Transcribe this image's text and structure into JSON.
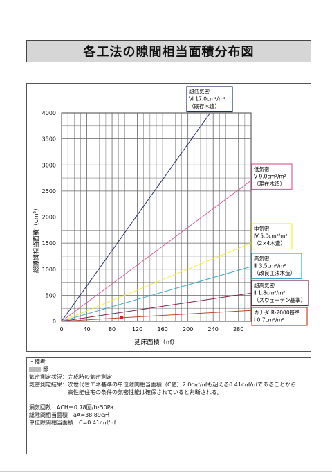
{
  "title": "各工法の隙間相当面積分布図",
  "chart_data": {
    "type": "line",
    "xlabel": "延床面積（㎡）",
    "ylabel": "総隙間相当面積（cm²）",
    "xlim": [
      0,
      300
    ],
    "ylim": [
      0,
      4000
    ],
    "x_ticks": [
      "0",
      "40",
      "80",
      "120",
      "160",
      "200",
      "240",
      "280"
    ],
    "y_ticks": [
      "0",
      "500",
      "1000",
      "1500",
      "2000",
      "2500",
      "3000",
      "3500",
      "4000"
    ],
    "grid": true,
    "series": [
      {
        "key": "vi",
        "color": "#1f2f6b",
        "c_value": 17.0,
        "label_lines": [
          "超低気密",
          "Ⅵ 17.0cm²/m²",
          "（既存木造）"
        ]
      },
      {
        "key": "v",
        "color": "#e0609a",
        "c_value": 9.0,
        "label_lines": [
          "低気密",
          "Ⅴ 9.0cm²/m²",
          "（現在木造）"
        ]
      },
      {
        "key": "iv",
        "color": "#f2ef3a",
        "c_value": 5.0,
        "label_lines": [
          "中気密",
          "Ⅳ 5.0cm²/m²",
          "（2×4木造）"
        ]
      },
      {
        "key": "iii",
        "color": "#3aa8c8",
        "c_value": 3.5,
        "label_lines": [
          "高気密",
          "Ⅲ 3.5cm²/m²",
          "（改良工法木造）"
        ]
      },
      {
        "key": "ii",
        "color": "#8a1f4a",
        "c_value": 1.8,
        "label_lines": [
          "超高気密",
          "Ⅱ 1.8cm²/m²",
          "（スウェーデン基準）"
        ]
      },
      {
        "key": "i",
        "color": "#b94a2a",
        "c_value": 0.7,
        "label_lines": [
          "カナダ R-2000基準",
          "Ⅰ 0.7cm²/m²"
        ]
      }
    ],
    "measured_point": {
      "x": 94.86,
      "y": 38.89,
      "color": "#e02020"
    }
  },
  "notes": {
    "header": "・備考",
    "name_suffix": "邸",
    "condition": "気密測定状況：完成時の気密測定",
    "result_line1": "気密測定結果：次世代省エネ基準の単位隙間相当面積（C値）2.0c㎡/㎡も超える0.41c㎡/㎡であることから",
    "result_line2": "高性能住宅の条件の気密性能は確保されていると判断される。",
    "air_change": "漏気回数　ACH＝0.78回/h･50Pa",
    "total_area": "総隙間相当面積　aA=38.89c㎡",
    "unit_area": "単位隙間相当面積　C=0.41c㎡/㎡"
  }
}
